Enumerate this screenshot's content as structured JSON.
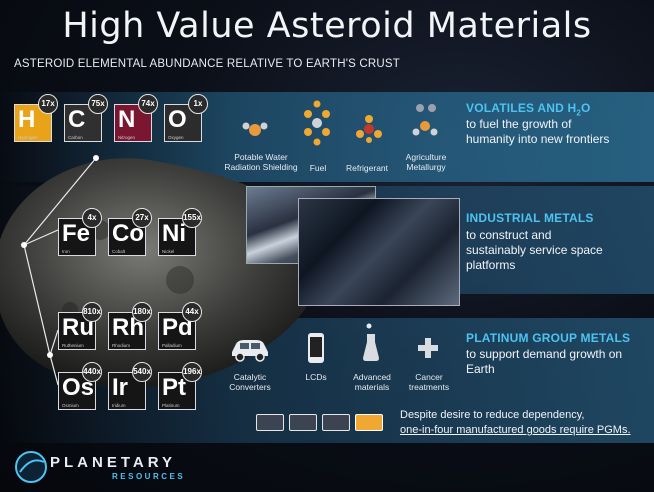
{
  "title": "High Value Asteroid Materials",
  "subtitle": "ASTEROID ELEMENTAL ABUNDANCE RELATIVE TO EARTH'S CRUST",
  "elements_row1": [
    {
      "symbol": "H",
      "name": "Hydrogen",
      "abundance": "17x",
      "color": "#e8a318"
    },
    {
      "symbol": "C",
      "name": "Carbon",
      "abundance": "75x",
      "color": "#303030"
    },
    {
      "symbol": "N",
      "name": "Nitrogen",
      "abundance": "74x",
      "color": "#7b1630"
    },
    {
      "symbol": "O",
      "name": "Oxygen",
      "abundance": "1x",
      "color": "#2c2c2c"
    }
  ],
  "elements_row2": [
    {
      "symbol": "Fe",
      "name": "Iron",
      "abundance": "4x"
    },
    {
      "symbol": "Co",
      "name": "Cobalt",
      "abundance": "27x"
    },
    {
      "symbol": "Ni",
      "name": "Nickel",
      "abundance": "155x"
    }
  ],
  "elements_row3": [
    {
      "symbol": "Ru",
      "name": "Ruthenium",
      "abundance": "810x"
    },
    {
      "symbol": "Rh",
      "name": "Rhodium",
      "abundance": "180x"
    },
    {
      "symbol": "Pd",
      "name": "Palladium",
      "abundance": "44x"
    }
  ],
  "elements_row4": [
    {
      "symbol": "Os",
      "name": "Osmium",
      "abundance": "440x"
    },
    {
      "symbol": "Ir",
      "name": "Iridium",
      "abundance": "540x"
    },
    {
      "symbol": "Pt",
      "name": "Platinum",
      "abundance": "196x"
    }
  ],
  "volatiles": {
    "title": "VOLATILES AND H",
    "title_sub": "2",
    "title_end": "O",
    "body": [
      "to fuel the growth of",
      "humanity into new frontiers"
    ],
    "icons": [
      {
        "icon": "water-molecule-icon",
        "caption": [
          "Potable Water",
          "Radiation Shielding"
        ]
      },
      {
        "icon": "fuel-molecule-icon",
        "caption": [
          "Fuel"
        ]
      },
      {
        "icon": "refrigerant-molecule-icon",
        "caption": [
          "Refrigerant"
        ]
      },
      {
        "icon": "agriculture-molecule-icon",
        "caption": [
          "Agriculture",
          "Metallurgy"
        ]
      }
    ]
  },
  "industrial": {
    "title": "INDUSTRIAL METALS",
    "body": [
      "to construct and",
      "sustainably service space",
      "platforms"
    ]
  },
  "pgm": {
    "title": "PLATINUM GROUP METALS",
    "body": [
      "to support demand growth on",
      "Earth"
    ],
    "icons": [
      {
        "icon": "car-icon",
        "caption": [
          "Catalytic",
          "Converters"
        ]
      },
      {
        "icon": "phone-icon",
        "caption": [
          "LCDs"
        ]
      },
      {
        "icon": "flask-icon",
        "caption": [
          "Advanced",
          "materials"
        ]
      },
      {
        "icon": "medical-cross-icon",
        "caption": [
          "Cancer",
          "treatments"
        ]
      }
    ],
    "note_line1": "Despite desire to reduce dependency,",
    "note_line2_underlined": "one-in-four manufactured goods require PGMs.",
    "chips_total": 4,
    "chips_highlighted": 1
  },
  "logo": {
    "name": "PLANETARY",
    "sub": "RESOURCES"
  }
}
